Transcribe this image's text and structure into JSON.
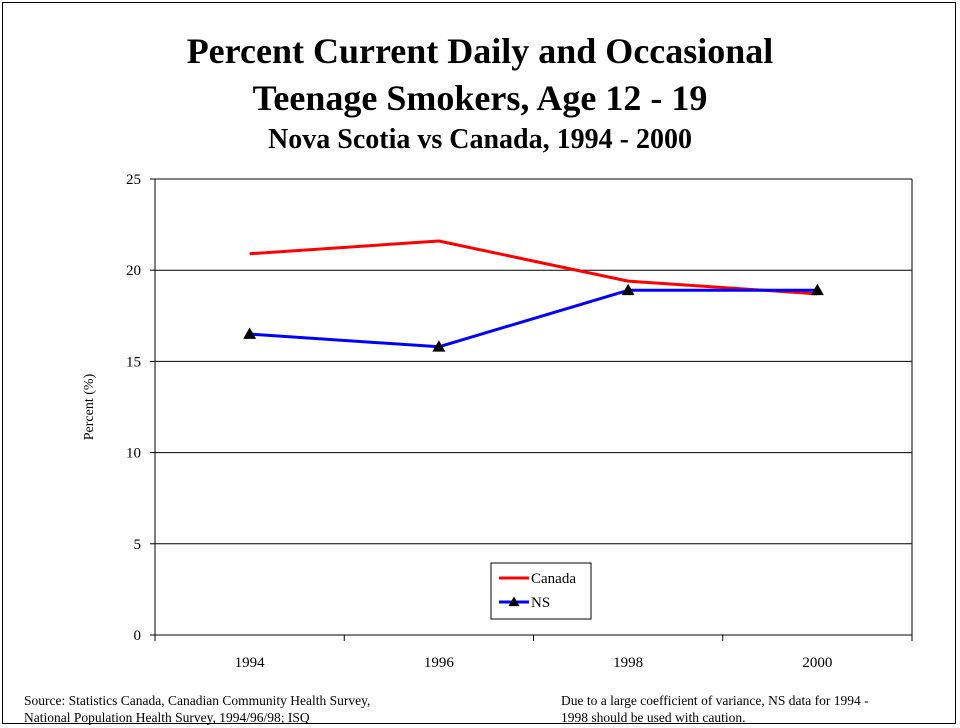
{
  "chart_data": {
    "type": "line",
    "title": "Percent Current Daily and Occasional",
    "title_line2": "Teenage Smokers, Age 12 - 19",
    "subtitle": "Nova Scotia vs Canada, 1994 - 2000",
    "xlabel": "",
    "ylabel": "Percent (%)",
    "categories": [
      "1994",
      "1996",
      "1998",
      "2000"
    ],
    "ylim": [
      0,
      25
    ],
    "yticks": [
      "0",
      "5",
      "10",
      "15",
      "20",
      "25"
    ],
    "grid": true,
    "legend": "bottom-center",
    "series": [
      {
        "name": "Canada",
        "values": [
          20.9,
          21.6,
          19.4,
          18.7
        ],
        "color": "#ff0000",
        "marker": "none"
      },
      {
        "name": "NS",
        "values": [
          16.5,
          15.8,
          18.9,
          18.9
        ],
        "color": "#0000ff",
        "marker": "triangle"
      }
    ]
  },
  "footer": {
    "source_line1": "Source: Statistics Canada, Canadian Community Health Survey,",
    "source_line2": "National Population Health Survey, 1994/96/98; ISQ",
    "note_line1": "Due to a large coefficient of variance, NS  data for 1994 -",
    "note_line2": "1998 should be used with caution."
  }
}
